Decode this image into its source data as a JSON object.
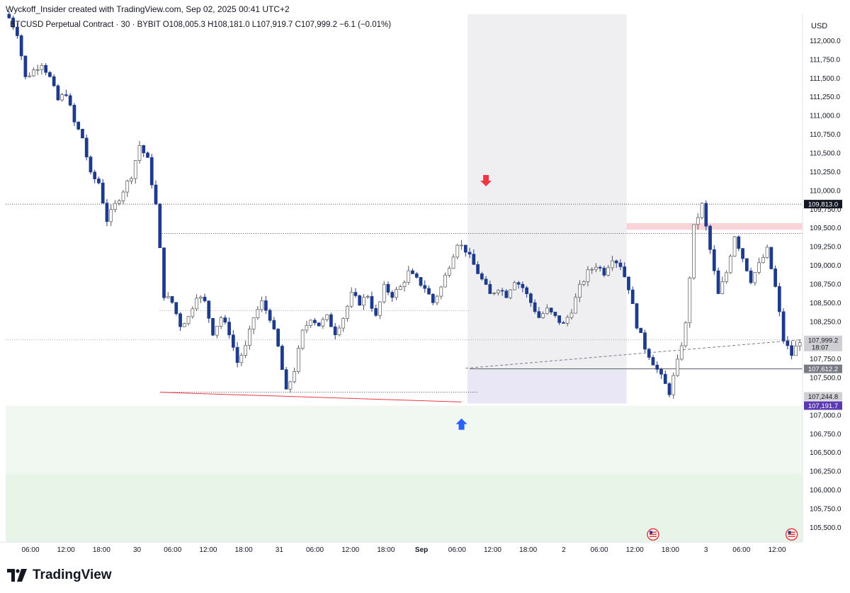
{
  "header": {
    "creator_line": "Wyckoff_Insider created with TradingView.com, Sep 02, 2025 00:41 UTC+2"
  },
  "legend": {
    "text": "BTCUSD Perpetual Contract · 30 · BYBIT  O108,005.3  H108,181.0  L107,919.7  C107,999.2  −6.1 (−0.01%)"
  },
  "footer": {
    "brand": "TradingView"
  },
  "colors": {
    "bear": "#1e3a8a",
    "bull_border": "#555555",
    "bull_fill": "#ffffff",
    "red_zone": "#f8d4d9",
    "green_zone_light": "#f1f8f1",
    "green_zone_dark": "#e9f4e9",
    "gray_zone": "#efeff2",
    "purple_zone": "#e9e6f5",
    "arrow_down": "#f23645",
    "arrow_up": "#2962ff",
    "current_price_label": "#cfcfd3",
    "purple_label": "#5b3ab0",
    "dark_label": "#131722",
    "gray_label": "#787b86"
  },
  "chart_data": {
    "type": "candlestick",
    "symbol": "BTCUSD Perpetual Contract",
    "interval": "30",
    "exchange": "BYBIT",
    "currency": "USD",
    "x_ticks": [
      "06:00",
      "12:00",
      "18:00",
      "30",
      "06:00",
      "12:00",
      "18:00",
      "31",
      "06:00",
      "12:00",
      "18:00",
      "Sep",
      "06:00",
      "12:00",
      "18:00",
      "2",
      "06:00",
      "12:00",
      "18:00",
      "3",
      "06:00",
      "12:00"
    ],
    "y_ticks": [
      "112,000.0",
      "111,750.0",
      "111,500.0",
      "111,250.0",
      "111,000.0",
      "110,750.0",
      "110,500.0",
      "110,250.0",
      "110,000.0",
      "109,750.0",
      "109,500.0",
      "109,250.0",
      "109,000.0",
      "108,750.0",
      "108,500.0",
      "108,250.0",
      "108,000.0",
      "107,750.0",
      "107,500.0",
      "107,250.0",
      "107,000.0",
      "106,750.0",
      "106,500.0",
      "106,250.0",
      "106,000.0",
      "105,750.0",
      "105,500.0"
    ],
    "ylim": [
      105300,
      112350
    ],
    "price_labels": [
      {
        "text": "109,813.0",
        "price": 109813,
        "style": "dark"
      },
      {
        "text": "107,999.2",
        "sub": "18:07",
        "price": 107999.2,
        "style": "current"
      },
      {
        "text": "107,612.2",
        "price": 107612.2,
        "style": "gray"
      },
      {
        "text": "107,244.8",
        "price": 107244.8,
        "style": "current"
      },
      {
        "text": "107,191.7",
        "price": 107191.7,
        "style": "purple"
      }
    ],
    "close_path": [
      [
        0,
        112300
      ],
      [
        2,
        112100
      ],
      [
        4,
        111500
      ],
      [
        6,
        111600
      ],
      [
        8,
        111700
      ],
      [
        10,
        111500
      ],
      [
        12,
        111200
      ],
      [
        14,
        111300
      ],
      [
        16,
        110900
      ],
      [
        18,
        110700
      ],
      [
        20,
        110200
      ],
      [
        22,
        110100
      ],
      [
        24,
        109600
      ],
      [
        26,
        109800
      ],
      [
        28,
        110000
      ],
      [
        30,
        110200
      ],
      [
        32,
        110600
      ],
      [
        34,
        110400
      ],
      [
        36,
        109800
      ],
      [
        38,
        108600
      ],
      [
        40,
        108500
      ],
      [
        42,
        108200
      ],
      [
        44,
        108300
      ],
      [
        46,
        108600
      ],
      [
        48,
        108500
      ],
      [
        50,
        108100
      ],
      [
        52,
        108300
      ],
      [
        54,
        108100
      ],
      [
        56,
        107700
      ],
      [
        58,
        107900
      ],
      [
        60,
        108300
      ],
      [
        62,
        108500
      ],
      [
        64,
        108300
      ],
      [
        66,
        107900
      ],
      [
        68,
        107300
      ],
      [
        70,
        107600
      ],
      [
        72,
        108100
      ],
      [
        74,
        108300
      ],
      [
        76,
        108200
      ],
      [
        78,
        108300
      ],
      [
        80,
        108100
      ],
      [
        82,
        108300
      ],
      [
        84,
        108600
      ],
      [
        86,
        108500
      ],
      [
        88,
        108600
      ],
      [
        90,
        108300
      ],
      [
        92,
        108700
      ],
      [
        94,
        108600
      ],
      [
        96,
        108700
      ],
      [
        98,
        108900
      ],
      [
        100,
        108800
      ],
      [
        102,
        108700
      ],
      [
        104,
        108500
      ],
      [
        106,
        108700
      ],
      [
        108,
        109000
      ],
      [
        110,
        109300
      ],
      [
        112,
        109200
      ],
      [
        114,
        109000
      ],
      [
        116,
        108800
      ],
      [
        118,
        108600
      ],
      [
        120,
        108700
      ],
      [
        122,
        108600
      ],
      [
        124,
        108800
      ],
      [
        126,
        108700
      ],
      [
        128,
        108500
      ],
      [
        130,
        108300
      ],
      [
        132,
        108400
      ],
      [
        134,
        108300
      ],
      [
        136,
        108200
      ],
      [
        138,
        108400
      ],
      [
        140,
        108700
      ],
      [
        142,
        108900
      ],
      [
        144,
        109000
      ],
      [
        146,
        108900
      ],
      [
        148,
        109100
      ],
      [
        150,
        109000
      ],
      [
        152,
        108700
      ],
      [
        154,
        108200
      ],
      [
        156,
        107900
      ],
      [
        158,
        107700
      ],
      [
        160,
        107500
      ],
      [
        162,
        107300
      ],
      [
        164,
        107700
      ],
      [
        166,
        108200
      ],
      [
        168,
        109500
      ],
      [
        170,
        109800
      ],
      [
        172,
        109200
      ],
      [
        174,
        108600
      ],
      [
        176,
        108900
      ],
      [
        178,
        109400
      ],
      [
        180,
        109100
      ],
      [
        182,
        108800
      ],
      [
        184,
        109000
      ],
      [
        186,
        109200
      ],
      [
        188,
        108700
      ],
      [
        190,
        108000
      ],
      [
        192,
        107800
      ],
      [
        194,
        108000
      ]
    ],
    "candle_count": 195,
    "chart_pixel_range": [
      10,
      1132
    ],
    "annotations": {
      "zones": [
        {
          "name": "red-supply-zone",
          "from": [
            130,
            109560
          ],
          "to": [
            195,
            109470
          ],
          "color": "red_zone"
        },
        {
          "name": "gray-range-box",
          "from": [
            113,
            112350
          ],
          "to": [
            151,
            107150
          ],
          "color": "gray_zone"
        },
        {
          "name": "purple-range-box",
          "from": [
            113,
            107600
          ],
          "to": [
            151,
            107150
          ],
          "color": "purple_zone"
        },
        {
          "name": "green-zone-upper",
          "price_top": 107120,
          "price_bottom": 106210,
          "color": "green_zone_light"
        },
        {
          "name": "green-zone-lower",
          "price_top": 106210,
          "price_bottom": 105300,
          "color": "green_zone_dark"
        }
      ],
      "levels": [
        {
          "price": 109813,
          "style": "dotted-dark"
        },
        {
          "price": 109420,
          "start": 37,
          "style": "dotted-dark"
        },
        {
          "price": 108390,
          "start": 37,
          "end": 113,
          "style": "dotted-gray"
        },
        {
          "price": 107999.2,
          "style": "dotted-gray"
        },
        {
          "price": 107612.2,
          "start": 113,
          "style": "solid-dark"
        },
        {
          "price": 107300,
          "start": 37,
          "end": 115,
          "style": "dotted-dark"
        }
      ],
      "trend_line": {
        "from": [
          37,
          107300
        ],
        "to": [
          111,
          107170
        ]
      },
      "dashed_line": {
        "from": [
          112,
          107620
        ],
        "to": [
          194,
          108000
        ]
      },
      "arrow_down": {
        "index": 117,
        "price": 110050
      },
      "arrow_up": {
        "index": 111,
        "price": 106950
      },
      "event_icons": [
        {
          "index": 158,
          "price": 105400
        },
        {
          "index": 192,
          "price": 105400
        }
      ]
    }
  }
}
